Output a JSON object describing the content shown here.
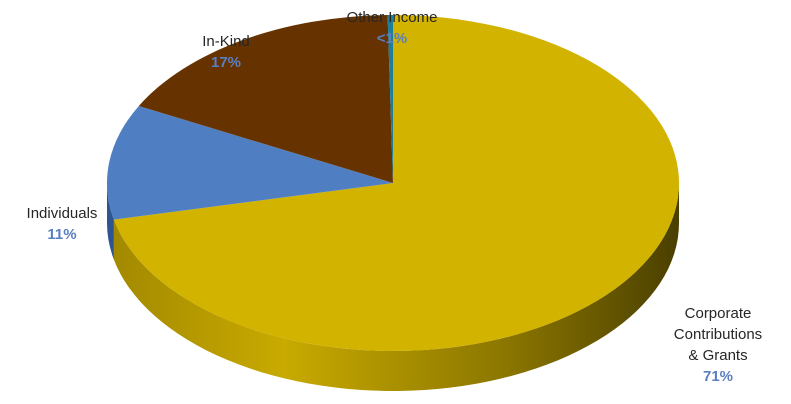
{
  "chart_data": {
    "type": "pie",
    "style": "3d",
    "title": "",
    "slices": [
      {
        "name": "Corporate Contributions & Grants",
        "label_lines": [
          "Corporate",
          "Contributions",
          "& Grants"
        ],
        "value_label": "71%",
        "value": 71,
        "color": "#d1b300",
        "side_color": "#8a7600"
      },
      {
        "name": "Individuals",
        "label_lines": [
          "Individuals"
        ],
        "value_label": "11%",
        "value": 11,
        "color": "#4f7fc2",
        "side_color": "#2f5590"
      },
      {
        "name": "In-Kind",
        "label_lines": [
          "In-Kind"
        ],
        "value_label": "17%",
        "value": 17,
        "color": "#663300",
        "side_color": "#3d1f00"
      },
      {
        "name": "Other Income",
        "label_lines": [
          "Other Income"
        ],
        "value_label": "<1%",
        "value": 0.3,
        "color": "#1f7f9a",
        "side_color": "#145566"
      }
    ]
  }
}
